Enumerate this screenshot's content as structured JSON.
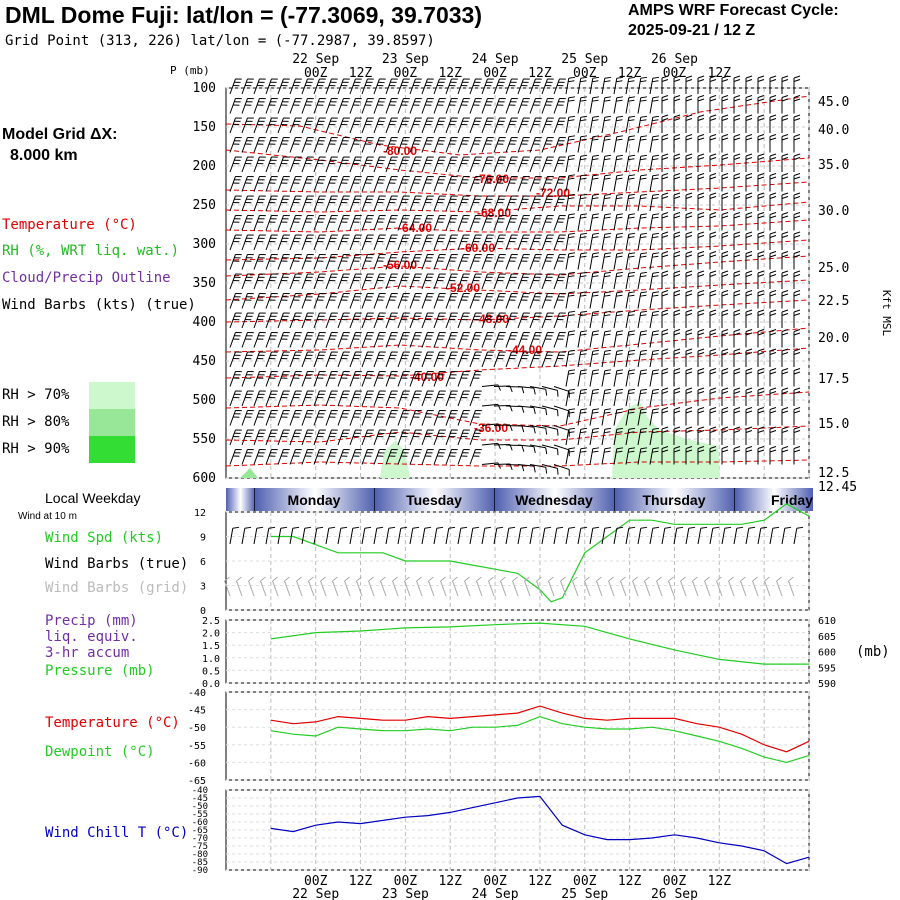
{
  "header": {
    "title": "DML Dome Fuji:  lat/lon = (-77.3069, 39.7033)",
    "subtitle": "Grid Point (313, 226) lat/lon = (-77.2987, 39.8597)",
    "cycle_label": "AMPS WRF Forecast Cycle:",
    "cycle_value": "2025-09-21 / 12  Z"
  },
  "model_grid": {
    "label": "Model Grid ΔX:",
    "value": "8.000 km"
  },
  "legend": {
    "temperature": "Temperature (°C)",
    "rh": "RH (%, WRT liq. wat.)",
    "cloud": "Cloud/Precip Outline",
    "wind": "Wind Barbs (kts) (true)",
    "rh70": "RH > 70%",
    "rh80": "RH > 80%",
    "rh90": "RH > 90%"
  },
  "colors": {
    "temperature": "#e00000",
    "rh": "#22cc22",
    "cloud": "#7030a0",
    "wind_chill": "#0000c0",
    "rh70": "#cdf7cd",
    "rh80": "#98e698",
    "rh90": "#33dd33"
  },
  "time_axis": {
    "date_labels": [
      "22 Sep",
      "23 Sep",
      "24 Sep",
      "25 Sep",
      "26 Sep"
    ],
    "hour_labels": [
      "00Z",
      "12Z",
      "00Z",
      "12Z",
      "00Z",
      "12Z",
      "00Z",
      "12Z",
      "00Z",
      "12Z"
    ],
    "weekdays": [
      "Monday",
      "Tuesday",
      "Wednesday",
      "Thursday",
      "Friday"
    ]
  },
  "chart_data": [
    {
      "type": "contour",
      "name": "upper-air cross-section",
      "yaxis_label": "P (mb)",
      "pressure_levels": [
        "100",
        "150",
        "200",
        "250",
        "300",
        "350",
        "400",
        "450",
        "500",
        "550",
        "600"
      ],
      "right_axis_label": "Kft MSL",
      "altitude_ticks": [
        "45.0",
        "40.0",
        "35.0",
        "30.0",
        "25.0",
        "22.5",
        "20.0",
        "17.5",
        "15.0",
        "12.5",
        "12.45"
      ],
      "temperature_contour_labels": [
        "-80.00",
        "-76.00",
        "-72.00",
        "-68.00",
        "-64.00",
        "-60.00",
        "-56.00",
        "-52.00",
        "-48.00",
        "-44.00",
        "-40.00",
        "-36.00"
      ]
    },
    {
      "type": "line",
      "name": "surface wind",
      "header": "Local Weekday",
      "subheader": "Wind at 10 m",
      "labels": [
        "Wind Spd (kts)",
        "Wind Barbs (true)",
        "Wind Barbs (grid)"
      ],
      "y_ticks": [
        "12",
        "9",
        "6",
        "3",
        "0"
      ],
      "ylim": [
        0,
        12
      ],
      "x_hours": [
        0,
        6,
        12,
        18,
        24,
        30,
        36,
        42,
        48,
        54,
        60,
        66,
        72,
        75,
        78,
        84,
        90,
        96,
        102,
        108,
        114,
        120,
        126,
        132,
        138,
        144
      ],
      "wind_speed": [
        9,
        9,
        8,
        7,
        7,
        7,
        6,
        6,
        6,
        5.5,
        5,
        4.5,
        2.5,
        1,
        1.5,
        7,
        9,
        11,
        11,
        10.5,
        10.5,
        10.5,
        10.5,
        11,
        13,
        11.5
      ]
    },
    {
      "type": "line",
      "name": "precipitation and pressure",
      "labels": [
        "Precip (mm)",
        "liq. equiv.",
        "3-hr accum",
        "Pressure (mb)"
      ],
      "left_ticks": [
        "2.5",
        "2.0",
        "1.5",
        "1.0",
        "0.5",
        "0.0"
      ],
      "right_ticks": [
        "610",
        "605",
        "600",
        "595",
        "590"
      ],
      "right_unit": "(mb)",
      "ylim_right": [
        590,
        610
      ],
      "x_hours": [
        0,
        12,
        24,
        36,
        48,
        60,
        66,
        72,
        84,
        96,
        108,
        120,
        132,
        144
      ],
      "pressure": [
        604,
        606,
        606.5,
        607.5,
        607.8,
        608.5,
        608.8,
        609,
        608,
        604,
        600.5,
        597.5,
        596,
        596
      ]
    },
    {
      "type": "line",
      "name": "temperature and dewpoint",
      "labels": [
        "Temperature (°C)",
        "Dewpoint (°C)"
      ],
      "y_ticks": [
        "-40",
        "-45",
        "-50",
        "-55",
        "-60",
        "-65"
      ],
      "ylim": [
        -65,
        -40
      ],
      "x_hours": [
        0,
        6,
        12,
        18,
        24,
        30,
        36,
        42,
        48,
        54,
        60,
        66,
        72,
        78,
        84,
        90,
        96,
        102,
        108,
        114,
        120,
        126,
        132,
        138,
        144
      ],
      "temperature": [
        -48,
        -49,
        -48.5,
        -47,
        -47.5,
        -48,
        -48,
        -47,
        -47.5,
        -47,
        -46.5,
        -46,
        -44,
        -46,
        -47.5,
        -48,
        -47.5,
        -47.5,
        -47.5,
        -49,
        -50,
        -52,
        -55,
        -57,
        -54
      ],
      "dewpoint": [
        -51,
        -52,
        -52.5,
        -50,
        -50.5,
        -51,
        -51,
        -50.5,
        -51,
        -50,
        -50,
        -49.5,
        -47,
        -49,
        -50,
        -50.5,
        -50.5,
        -50,
        -51,
        -52.5,
        -54,
        -56,
        -58.5,
        -60,
        -58
      ]
    },
    {
      "type": "line",
      "name": "wind chill",
      "labels": [
        "Wind Chill T (°C)"
      ],
      "y_ticks": [
        "-40",
        "-45",
        "-50",
        "-55",
        "-60",
        "-65",
        "-70",
        "-75",
        "-80",
        "-85",
        "-90"
      ],
      "ylim": [
        -90,
        -40
      ],
      "x_hours": [
        0,
        6,
        12,
        18,
        24,
        30,
        36,
        42,
        48,
        54,
        60,
        66,
        72,
        78,
        84,
        90,
        96,
        102,
        108,
        114,
        120,
        126,
        132,
        138,
        144
      ],
      "wind_chill": [
        -64,
        -66,
        -62,
        -60,
        -61,
        -59,
        -57,
        -56,
        -54,
        -51,
        -48,
        -45,
        -44,
        -62,
        -68,
        -71,
        -71,
        -70,
        -68,
        -70,
        -73,
        -75,
        -78,
        -86,
        -82
      ]
    }
  ]
}
